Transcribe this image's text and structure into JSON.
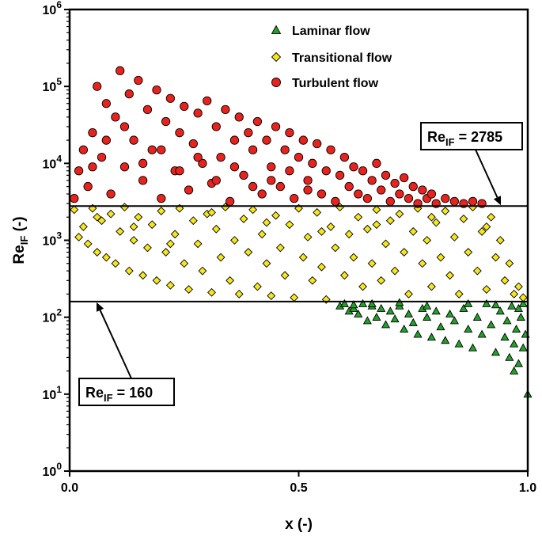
{
  "chart_data": {
    "type": "scatter",
    "xlabel": "x (-)",
    "ylabel_main": "Re",
    "ylabel_sub": "IF",
    "ylabel_tail": " (-)",
    "xlim": [
      0,
      1
    ],
    "ylim": [
      1,
      1000000
    ],
    "yscale": "log",
    "grid": false,
    "legend_position": "top-center",
    "x_ticks": [
      {
        "value": 0.0,
        "label": "0.0"
      },
      {
        "value": 0.5,
        "label": "0.5"
      },
      {
        "value": 1.0,
        "label": "1.0"
      }
    ],
    "y_ticks": [
      {
        "value": 1,
        "base": "10",
        "exp": "0"
      },
      {
        "value": 10,
        "base": "10",
        "exp": "1"
      },
      {
        "value": 100,
        "base": "10",
        "exp": "2"
      },
      {
        "value": 1000,
        "base": "10",
        "exp": "3"
      },
      {
        "value": 10000,
        "base": "10",
        "exp": "4"
      },
      {
        "value": 100000,
        "base": "10",
        "exp": "5"
      },
      {
        "value": 1000000,
        "base": "10",
        "exp": "6"
      }
    ],
    "thresholds": [
      {
        "value": 2785,
        "label_main": "Re",
        "label_sub": "IF",
        "label_tail": " = 2785",
        "x_start": 0,
        "x_end": 1
      },
      {
        "value": 160,
        "label_main": "Re",
        "label_sub": "IF",
        "label_tail": " = 160",
        "x_start": 0,
        "x_end": 1
      }
    ],
    "series": [
      {
        "name": "Laminar flow",
        "marker": "triangle",
        "color": "#22a02a",
        "points": [
          [
            0.59,
            140
          ],
          [
            0.6,
            150
          ],
          [
            0.61,
            120
          ],
          [
            0.62,
            130
          ],
          [
            0.63,
            110
          ],
          [
            0.64,
            150
          ],
          [
            0.65,
            90
          ],
          [
            0.66,
            140
          ],
          [
            0.67,
            100
          ],
          [
            0.68,
            130
          ],
          [
            0.69,
            80
          ],
          [
            0.7,
            120
          ],
          [
            0.71,
            95
          ],
          [
            0.72,
            140
          ],
          [
            0.73,
            70
          ],
          [
            0.74,
            110
          ],
          [
            0.75,
            85
          ],
          [
            0.76,
            60
          ],
          [
            0.77,
            130
          ],
          [
            0.78,
            100
          ],
          [
            0.79,
            55
          ],
          [
            0.8,
            120
          ],
          [
            0.81,
            75
          ],
          [
            0.82,
            50
          ],
          [
            0.83,
            110
          ],
          [
            0.84,
            90
          ],
          [
            0.85,
            45
          ],
          [
            0.86,
            130
          ],
          [
            0.87,
            70
          ],
          [
            0.88,
            40
          ],
          [
            0.89,
            100
          ],
          [
            0.9,
            60
          ],
          [
            0.91,
            150
          ],
          [
            0.92,
            80
          ],
          [
            0.93,
            35
          ],
          [
            0.94,
            120
          ],
          [
            0.95,
            55
          ],
          [
            0.955,
            90
          ],
          [
            0.96,
            30
          ],
          [
            0.965,
            140
          ],
          [
            0.97,
            45
          ],
          [
            0.975,
            70
          ],
          [
            0.98,
            25
          ],
          [
            0.985,
            100
          ],
          [
            0.99,
            40
          ],
          [
            0.995,
            60
          ],
          [
            0.97,
            20
          ],
          [
            0.98,
            130
          ],
          [
            0.99,
            150
          ],
          [
            1.0,
            10
          ],
          [
            0.93,
            145
          ],
          [
            0.87,
            150
          ],
          [
            0.78,
            140
          ],
          [
            0.72,
            155
          ],
          [
            0.66,
            150
          ],
          [
            0.62,
            145
          ]
        ]
      },
      {
        "name": "Transitional flow",
        "marker": "diamond",
        "color": "#f5e61e",
        "points": [
          [
            0.01,
            2500
          ],
          [
            0.02,
            1100
          ],
          [
            0.03,
            1500
          ],
          [
            0.04,
            900
          ],
          [
            0.05,
            2600
          ],
          [
            0.06,
            700
          ],
          [
            0.07,
            1800
          ],
          [
            0.08,
            600
          ],
          [
            0.09,
            2200
          ],
          [
            0.1,
            500
          ],
          [
            0.11,
            1300
          ],
          [
            0.12,
            2700
          ],
          [
            0.13,
            400
          ],
          [
            0.14,
            1000
          ],
          [
            0.15,
            2000
          ],
          [
            0.16,
            350
          ],
          [
            0.17,
            800
          ],
          [
            0.18,
            1600
          ],
          [
            0.19,
            300
          ],
          [
            0.2,
            2400
          ],
          [
            0.21,
            700
          ],
          [
            0.22,
            260
          ],
          [
            0.23,
            1200
          ],
          [
            0.24,
            2600
          ],
          [
            0.25,
            500
          ],
          [
            0.26,
            230
          ],
          [
            0.27,
            1800
          ],
          [
            0.28,
            900
          ],
          [
            0.29,
            400
          ],
          [
            0.3,
            2200
          ],
          [
            0.31,
            210
          ],
          [
            0.32,
            1400
          ],
          [
            0.33,
            600
          ],
          [
            0.34,
            2700
          ],
          [
            0.35,
            300
          ],
          [
            0.36,
            1000
          ],
          [
            0.37,
            200
          ],
          [
            0.38,
            1900
          ],
          [
            0.39,
            700
          ],
          [
            0.4,
            2500
          ],
          [
            0.41,
            250
          ],
          [
            0.42,
            1200
          ],
          [
            0.43,
            500
          ],
          [
            0.44,
            190
          ],
          [
            0.45,
            2100
          ],
          [
            0.46,
            800
          ],
          [
            0.47,
            350
          ],
          [
            0.48,
            1600
          ],
          [
            0.49,
            180
          ],
          [
            0.5,
            2600
          ],
          [
            0.51,
            600
          ],
          [
            0.52,
            1100
          ],
          [
            0.53,
            300
          ],
          [
            0.54,
            2300
          ],
          [
            0.55,
            450
          ],
          [
            0.56,
            170
          ],
          [
            0.57,
            1500
          ],
          [
            0.58,
            800
          ],
          [
            0.59,
            2700
          ],
          [
            0.6,
            350
          ],
          [
            0.61,
            1200
          ],
          [
            0.62,
            600
          ],
          [
            0.63,
            2000
          ],
          [
            0.64,
            250
          ],
          [
            0.65,
            1400
          ],
          [
            0.66,
            500
          ],
          [
            0.67,
            2500
          ],
          [
            0.68,
            300
          ],
          [
            0.69,
            900
          ],
          [
            0.7,
            1800
          ],
          [
            0.71,
            400
          ],
          [
            0.72,
            2200
          ],
          [
            0.73,
            700
          ],
          [
            0.74,
            200
          ],
          [
            0.75,
            1300
          ],
          [
            0.76,
            2600
          ],
          [
            0.77,
            500
          ],
          [
            0.78,
            1000
          ],
          [
            0.79,
            250
          ],
          [
            0.8,
            1700
          ],
          [
            0.81,
            600
          ],
          [
            0.82,
            2400
          ],
          [
            0.83,
            350
          ],
          [
            0.84,
            1100
          ],
          [
            0.85,
            200
          ],
          [
            0.86,
            1900
          ],
          [
            0.87,
            700
          ],
          [
            0.88,
            2700
          ],
          [
            0.89,
            400
          ],
          [
            0.9,
            1300
          ],
          [
            0.91,
            230
          ],
          [
            0.92,
            2000
          ],
          [
            0.93,
            600
          ],
          [
            0.94,
            1000
          ],
          [
            0.95,
            300
          ],
          [
            0.96,
            500
          ],
          [
            0.97,
            200
          ],
          [
            0.98,
            250
          ],
          [
            0.99,
            180
          ],
          [
            0.06,
            2000
          ],
          [
            0.14,
            1500
          ],
          [
            0.22,
            900
          ],
          [
            0.31,
            2300
          ],
          [
            0.43,
            1700
          ],
          [
            0.55,
            1300
          ],
          [
            0.67,
            1600
          ],
          [
            0.79,
            2000
          ],
          [
            0.91,
            1500
          ]
        ]
      },
      {
        "name": "Turbulent flow",
        "marker": "circle",
        "color": "#e8231e",
        "points": [
          [
            0.01,
            3500
          ],
          [
            0.02,
            8000
          ],
          [
            0.03,
            15000
          ],
          [
            0.04,
            5000
          ],
          [
            0.05,
            25000
          ],
          [
            0.06,
            100000
          ],
          [
            0.07,
            12000
          ],
          [
            0.08,
            60000
          ],
          [
            0.09,
            4000
          ],
          [
            0.1,
            40000
          ],
          [
            0.11,
            160000
          ],
          [
            0.12,
            9000
          ],
          [
            0.13,
            80000
          ],
          [
            0.14,
            20000
          ],
          [
            0.15,
            120000
          ],
          [
            0.16,
            6000
          ],
          [
            0.17,
            50000
          ],
          [
            0.18,
            15000
          ],
          [
            0.19,
            90000
          ],
          [
            0.2,
            3500
          ],
          [
            0.21,
            35000
          ],
          [
            0.22,
            70000
          ],
          [
            0.23,
            8000
          ],
          [
            0.24,
            25000
          ],
          [
            0.25,
            55000
          ],
          [
            0.26,
            4500
          ],
          [
            0.27,
            18000
          ],
          [
            0.28,
            45000
          ],
          [
            0.29,
            10000
          ],
          [
            0.3,
            65000
          ],
          [
            0.31,
            5500
          ],
          [
            0.32,
            30000
          ],
          [
            0.33,
            12000
          ],
          [
            0.34,
            50000
          ],
          [
            0.35,
            3200
          ],
          [
            0.36,
            20000
          ],
          [
            0.37,
            40000
          ],
          [
            0.38,
            7000
          ],
          [
            0.39,
            25000
          ],
          [
            0.4,
            15000
          ],
          [
            0.41,
            35000
          ],
          [
            0.42,
            4000
          ],
          [
            0.43,
            20000
          ],
          [
            0.44,
            9000
          ],
          [
            0.45,
            30000
          ],
          [
            0.46,
            5000
          ],
          [
            0.47,
            15000
          ],
          [
            0.48,
            25000
          ],
          [
            0.49,
            3500
          ],
          [
            0.5,
            12000
          ],
          [
            0.51,
            20000
          ],
          [
            0.52,
            6000
          ],
          [
            0.53,
            10000
          ],
          [
            0.54,
            18000
          ],
          [
            0.55,
            4000
          ],
          [
            0.56,
            8000
          ],
          [
            0.57,
            15000
          ],
          [
            0.58,
            3200
          ],
          [
            0.59,
            7000
          ],
          [
            0.6,
            12000
          ],
          [
            0.61,
            5000
          ],
          [
            0.62,
            9000
          ],
          [
            0.63,
            4000
          ],
          [
            0.64,
            8000
          ],
          [
            0.65,
            3500
          ],
          [
            0.66,
            6000
          ],
          [
            0.67,
            10000
          ],
          [
            0.68,
            4500
          ],
          [
            0.69,
            7000
          ],
          [
            0.7,
            3200
          ],
          [
            0.71,
            5500
          ],
          [
            0.72,
            4000
          ],
          [
            0.73,
            6500
          ],
          [
            0.74,
            3500
          ],
          [
            0.75,
            5000
          ],
          [
            0.76,
            3000
          ],
          [
            0.77,
            4500
          ],
          [
            0.78,
            3500
          ],
          [
            0.79,
            4000
          ],
          [
            0.8,
            3000
          ],
          [
            0.82,
            3500
          ],
          [
            0.84,
            3200
          ],
          [
            0.86,
            3000
          ],
          [
            0.88,
            3200
          ],
          [
            0.9,
            3000
          ],
          [
            0.05,
            9000
          ],
          [
            0.08,
            20000
          ],
          [
            0.12,
            30000
          ],
          [
            0.16,
            10000
          ],
          [
            0.2,
            15000
          ],
          [
            0.24,
            8000
          ],
          [
            0.28,
            12000
          ],
          [
            0.32,
            6000
          ],
          [
            0.36,
            9000
          ],
          [
            0.4,
            5000
          ],
          [
            0.44,
            6000
          ],
          [
            0.48,
            8000
          ],
          [
            0.52,
            4500
          ]
        ]
      }
    ]
  }
}
